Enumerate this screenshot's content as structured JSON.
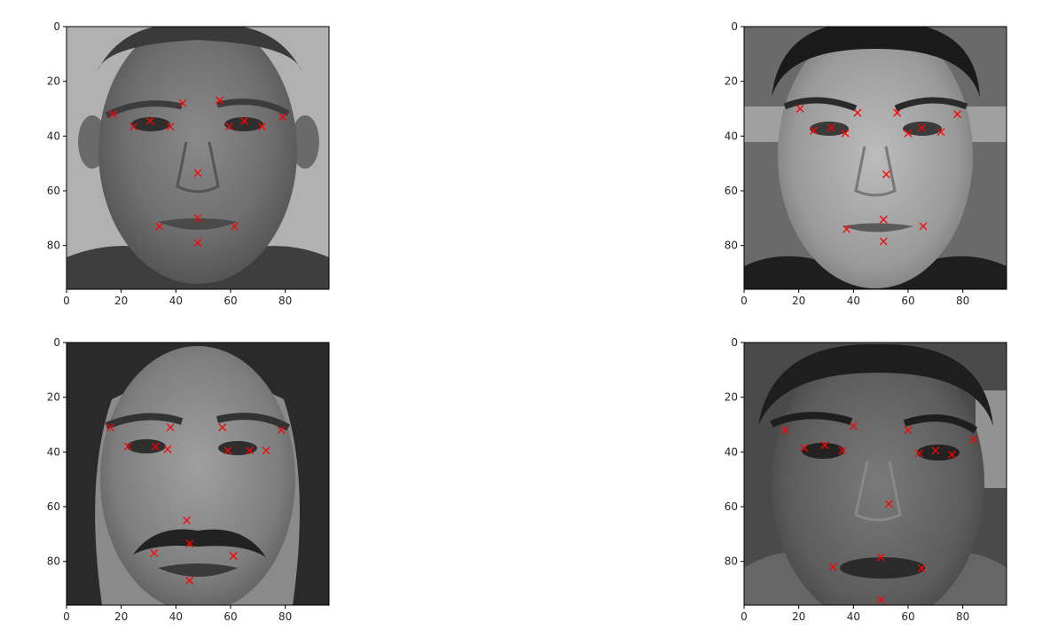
{
  "chart_data": [
    {
      "type": "scatter",
      "image": "grayscale face photo",
      "xlim": [
        0,
        96
      ],
      "ylim": [
        96,
        0
      ],
      "xticks": [
        "0",
        "20",
        "40",
        "60",
        "80"
      ],
      "yticks": [
        "0",
        "20",
        "40",
        "60",
        "80"
      ],
      "marker": "x",
      "marker_color": "#ff0000",
      "points": [
        [
          17,
          32
        ],
        [
          24.5,
          36.5
        ],
        [
          30.5,
          34.5
        ],
        [
          38,
          36.5
        ],
        [
          42.5,
          28
        ],
        [
          56,
          27
        ],
        [
          59.5,
          36.5
        ],
        [
          65,
          34.5
        ],
        [
          71.5,
          36.5
        ],
        [
          79,
          33
        ],
        [
          48,
          53.5
        ],
        [
          34,
          73
        ],
        [
          48,
          70
        ],
        [
          61.5,
          73
        ],
        [
          48,
          79
        ]
      ]
    },
    {
      "type": "scatter",
      "image": "grayscale face photo",
      "xlim": [
        0,
        96
      ],
      "ylim": [
        96,
        0
      ],
      "xticks": [
        "0",
        "20",
        "40",
        "60",
        "80"
      ],
      "yticks": [
        "0",
        "20",
        "40",
        "60",
        "80"
      ],
      "marker": "x",
      "marker_color": "#ff0000",
      "points": [
        [
          20.5,
          30
        ],
        [
          25.5,
          38
        ],
        [
          32,
          37
        ],
        [
          37,
          39
        ],
        [
          41.5,
          31.5
        ],
        [
          56,
          31.5
        ],
        [
          60,
          39
        ],
        [
          65,
          37
        ],
        [
          72,
          38.5
        ],
        [
          78,
          32
        ],
        [
          52,
          54
        ],
        [
          37.5,
          74
        ],
        [
          51,
          70.5
        ],
        [
          65.5,
          73
        ],
        [
          51,
          78.5
        ]
      ]
    },
    {
      "type": "scatter",
      "image": "grayscale face photo",
      "xlim": [
        0,
        96
      ],
      "ylim": [
        96,
        0
      ],
      "xticks": [
        "0",
        "20",
        "40",
        "60",
        "80"
      ],
      "yticks": [
        "0",
        "20",
        "40",
        "60",
        "80"
      ],
      "marker": "x",
      "marker_color": "#ff0000",
      "points": [
        [
          16,
          31
        ],
        [
          22.5,
          38
        ],
        [
          32.5,
          38
        ],
        [
          37,
          39
        ],
        [
          38,
          31
        ],
        [
          57,
          31
        ],
        [
          59,
          39.5
        ],
        [
          67,
          39.5
        ],
        [
          73,
          39.5
        ],
        [
          78.5,
          32
        ],
        [
          44,
          65
        ],
        [
          32,
          77
        ],
        [
          45,
          73.5
        ],
        [
          61,
          78
        ],
        [
          45,
          87
        ]
      ]
    },
    {
      "type": "scatter",
      "image": "grayscale face photo",
      "xlim": [
        0,
        96
      ],
      "ylim": [
        96,
        0
      ],
      "xticks": [
        "0",
        "20",
        "40",
        "60",
        "80"
      ],
      "yticks": [
        "0",
        "20",
        "40",
        "60",
        "80"
      ],
      "marker": "x",
      "marker_color": "#ff0000",
      "points": [
        [
          15,
          32
        ],
        [
          22,
          38.5
        ],
        [
          29.5,
          37.5
        ],
        [
          36,
          39.5
        ],
        [
          40,
          30.5
        ],
        [
          60,
          32
        ],
        [
          64,
          40.5
        ],
        [
          70,
          39.5
        ],
        [
          76,
          41
        ],
        [
          84,
          35.5
        ],
        [
          53,
          59
        ],
        [
          32.5,
          82
        ],
        [
          50,
          78.5
        ],
        [
          65,
          82.5
        ],
        [
          50,
          94
        ]
      ]
    }
  ]
}
